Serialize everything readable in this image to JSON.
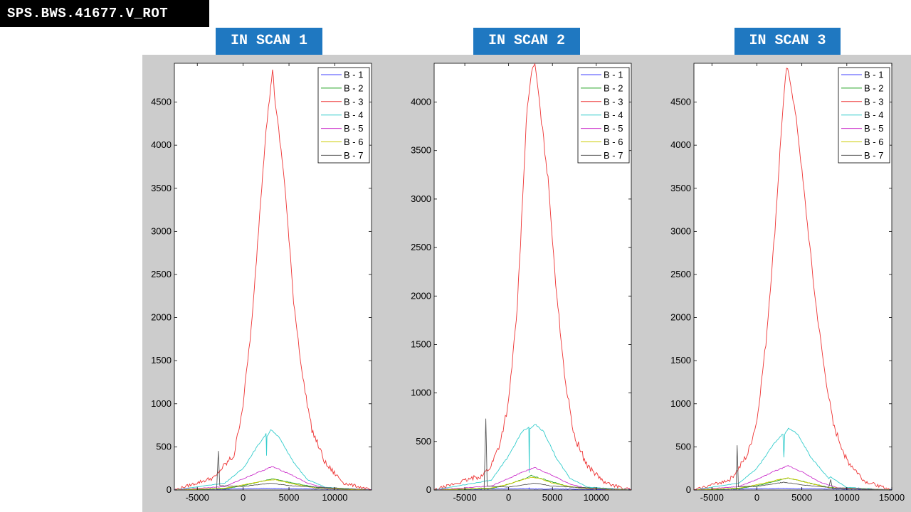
{
  "page_title": "SPS.BWS.41677.V_ROT",
  "scan_labels": [
    "IN SCAN 1",
    "IN SCAN 2",
    "IN SCAN 3"
  ],
  "legend_labels": [
    "B - 1",
    "B - 2",
    "B - 3",
    "B - 4",
    "B - 5",
    "B - 6",
    "B - 7"
  ],
  "series_colors": [
    "#4040ff",
    "#22a022",
    "#ee3333",
    "#33cccc",
    "#cc33cc",
    "#cccc00",
    "#555555"
  ],
  "chart_data": [
    {
      "type": "line",
      "xlim": [
        -7500,
        14000
      ],
      "ylim": [
        0,
        4950
      ],
      "xticks": [
        -5000,
        0,
        5000,
        10000
      ],
      "yticks": [
        0,
        500,
        1000,
        1500,
        2000,
        2500,
        3000,
        3500,
        4000,
        4500
      ],
      "grid": false,
      "legend_position": "top-right",
      "series": [
        {
          "name": "B - 1",
          "values": [
            [
              -7500,
              5
            ],
            [
              -2000,
              10
            ],
            [
              2500,
              20
            ],
            [
              5000,
              15
            ],
            [
              14000,
              5
            ]
          ]
        },
        {
          "name": "B - 2",
          "values": [
            [
              -7500,
              0
            ],
            [
              -2000,
              15
            ],
            [
              0,
              50
            ],
            [
              2000,
              100
            ],
            [
              3200,
              130
            ],
            [
              5000,
              90
            ],
            [
              8000,
              30
            ],
            [
              14000,
              0
            ]
          ]
        },
        {
          "name": "B - 3",
          "values": [
            [
              -7500,
              0
            ],
            [
              -3000,
              150
            ],
            [
              -2500,
              230
            ],
            [
              -1000,
              400
            ],
            [
              0,
              1000
            ],
            [
              1000,
              2000
            ],
            [
              1800,
              3200
            ],
            [
              2500,
              4200
            ],
            [
              3000,
              4650
            ],
            [
              3200,
              4900
            ],
            [
              3500,
              4500
            ],
            [
              4500,
              3600
            ],
            [
              5500,
              2200
            ],
            [
              6500,
              1300
            ],
            [
              7500,
              700
            ],
            [
              9000,
              300
            ],
            [
              11000,
              80
            ],
            [
              14000,
              0
            ]
          ]
        },
        {
          "name": "B - 4",
          "values": [
            [
              -7500,
              0
            ],
            [
              -2000,
              80
            ],
            [
              0,
              250
            ],
            [
              1500,
              500
            ],
            [
              2500,
              650
            ],
            [
              2550,
              400
            ],
            [
              2600,
              620
            ],
            [
              3000,
              700
            ],
            [
              4000,
              600
            ],
            [
              5500,
              320
            ],
            [
              7000,
              120
            ],
            [
              9000,
              30
            ],
            [
              14000,
              0
            ]
          ]
        },
        {
          "name": "B - 5",
          "values": [
            [
              -7500,
              0
            ],
            [
              -2000,
              40
            ],
            [
              0,
              130
            ],
            [
              2000,
              220
            ],
            [
              3200,
              270
            ],
            [
              5000,
              190
            ],
            [
              7000,
              80
            ],
            [
              9000,
              20
            ],
            [
              14000,
              0
            ]
          ]
        },
        {
          "name": "B - 6",
          "values": [
            [
              -7500,
              0
            ],
            [
              -2000,
              20
            ],
            [
              0,
              60
            ],
            [
              2500,
              110
            ],
            [
              3500,
              120
            ],
            [
              5000,
              80
            ],
            [
              8000,
              20
            ],
            [
              14000,
              0
            ]
          ]
        },
        {
          "name": "B - 7",
          "values": [
            [
              -7500,
              0
            ],
            [
              -2900,
              0
            ],
            [
              -2700,
              450
            ],
            [
              -2550,
              50
            ],
            [
              0,
              40
            ],
            [
              3000,
              80
            ],
            [
              5000,
              50
            ],
            [
              14000,
              0
            ]
          ]
        }
      ]
    },
    {
      "type": "line",
      "xlim": [
        -8500,
        14000
      ],
      "ylim": [
        0,
        4400
      ],
      "xticks": [
        -5000,
        0,
        5000,
        10000
      ],
      "yticks": [
        0,
        500,
        1000,
        1500,
        2000,
        2500,
        3000,
        3500,
        4000
      ],
      "grid": false,
      "legend_position": "top-right",
      "series": [
        {
          "name": "B - 1",
          "values": [
            [
              -8500,
              5
            ],
            [
              -2000,
              10
            ],
            [
              2300,
              15
            ],
            [
              2350,
              20
            ],
            [
              2400,
              10
            ],
            [
              5000,
              10
            ],
            [
              14000,
              5
            ]
          ]
        },
        {
          "name": "B - 2",
          "values": [
            [
              -8500,
              0
            ],
            [
              -2000,
              15
            ],
            [
              0,
              60
            ],
            [
              2000,
              120
            ],
            [
              2500,
              150
            ],
            [
              4000,
              110
            ],
            [
              7000,
              30
            ],
            [
              14000,
              0
            ]
          ]
        },
        {
          "name": "B - 3",
          "values": [
            [
              -8500,
              0
            ],
            [
              -3000,
              150
            ],
            [
              -2000,
              250
            ],
            [
              -1000,
              480
            ],
            [
              0,
              900
            ],
            [
              1000,
              1900
            ],
            [
              1600,
              3000
            ],
            [
              2000,
              3800
            ],
            [
              2500,
              4250
            ],
            [
              3000,
              4400
            ],
            [
              3500,
              4000
            ],
            [
              4500,
              3200
            ],
            [
              5500,
              2000
            ],
            [
              6500,
              1100
            ],
            [
              7500,
              550
            ],
            [
              9000,
              250
            ],
            [
              11000,
              70
            ],
            [
              14000,
              0
            ]
          ]
        },
        {
          "name": "B - 4",
          "values": [
            [
              -8500,
              0
            ],
            [
              -2000,
              100
            ],
            [
              0,
              350
            ],
            [
              1500,
              600
            ],
            [
              2300,
              650
            ],
            [
              2350,
              180
            ],
            [
              2400,
              630
            ],
            [
              3000,
              680
            ],
            [
              4000,
              600
            ],
            [
              5500,
              320
            ],
            [
              7000,
              120
            ],
            [
              9000,
              30
            ],
            [
              14000,
              0
            ]
          ]
        },
        {
          "name": "B - 5",
          "values": [
            [
              -8500,
              0
            ],
            [
              -2000,
              40
            ],
            [
              0,
              120
            ],
            [
              2000,
              200
            ],
            [
              3000,
              230
            ],
            [
              5000,
              150
            ],
            [
              7000,
              60
            ],
            [
              9000,
              15
            ],
            [
              14000,
              0
            ]
          ]
        },
        {
          "name": "B - 6",
          "values": [
            [
              -8500,
              0
            ],
            [
              -2000,
              20
            ],
            [
              0,
              60
            ],
            [
              2500,
              130
            ],
            [
              3500,
              120
            ],
            [
              5000,
              70
            ],
            [
              8000,
              20
            ],
            [
              14000,
              0
            ]
          ]
        },
        {
          "name": "B - 7",
          "values": [
            [
              -8500,
              0
            ],
            [
              -2800,
              0
            ],
            [
              -2600,
              740
            ],
            [
              -2450,
              40
            ],
            [
              0,
              30
            ],
            [
              3000,
              70
            ],
            [
              5000,
              40
            ],
            [
              14000,
              0
            ]
          ]
        }
      ]
    },
    {
      "type": "line",
      "xlim": [
        -7000,
        15000
      ],
      "ylim": [
        0,
        4950
      ],
      "xticks": [
        -5000,
        0,
        5000,
        10000,
        15000
      ],
      "yticks": [
        0,
        500,
        1000,
        1500,
        2000,
        2500,
        3000,
        3500,
        4000,
        4500
      ],
      "grid": false,
      "legend_position": "top-right",
      "series": [
        {
          "name": "B - 1",
          "values": [
            [
              -7000,
              5
            ],
            [
              -2000,
              10
            ],
            [
              2500,
              20
            ],
            [
              5000,
              15
            ],
            [
              15000,
              5
            ]
          ]
        },
        {
          "name": "B - 2",
          "values": [
            [
              -7000,
              0
            ],
            [
              -2000,
              15
            ],
            [
              0,
              50
            ],
            [
              2000,
              100
            ],
            [
              3500,
              140
            ],
            [
              5000,
              100
            ],
            [
              8000,
              30
            ],
            [
              15000,
              0
            ]
          ]
        },
        {
          "name": "B - 3",
          "values": [
            [
              -7000,
              0
            ],
            [
              -3000,
              120
            ],
            [
              -2000,
              250
            ],
            [
              -1000,
              420
            ],
            [
              0,
              800
            ],
            [
              1000,
              1700
            ],
            [
              2000,
              3000
            ],
            [
              2800,
              4300
            ],
            [
              3300,
              4900
            ],
            [
              3800,
              4700
            ],
            [
              4500,
              4200
            ],
            [
              5500,
              3200
            ],
            [
              6500,
              2200
            ],
            [
              7500,
              1400
            ],
            [
              8500,
              750
            ],
            [
              10000,
              350
            ],
            [
              12000,
              100
            ],
            [
              15000,
              0
            ]
          ]
        },
        {
          "name": "B - 4",
          "values": [
            [
              -7000,
              0
            ],
            [
              -2000,
              80
            ],
            [
              0,
              250
            ],
            [
              2000,
              550
            ],
            [
              2900,
              650
            ],
            [
              3000,
              380
            ],
            [
              3100,
              640
            ],
            [
              3500,
              720
            ],
            [
              4500,
              650
            ],
            [
              6000,
              380
            ],
            [
              8000,
              130
            ],
            [
              8200,
              150
            ],
            [
              10000,
              30
            ],
            [
              15000,
              0
            ]
          ]
        },
        {
          "name": "B - 5",
          "values": [
            [
              -7000,
              0
            ],
            [
              -2000,
              40
            ],
            [
              0,
              120
            ],
            [
              2000,
              220
            ],
            [
              3500,
              280
            ],
            [
              5000,
              210
            ],
            [
              7000,
              90
            ],
            [
              9000,
              25
            ],
            [
              15000,
              0
            ]
          ]
        },
        {
          "name": "B - 6",
          "values": [
            [
              -7000,
              0
            ],
            [
              -2000,
              20
            ],
            [
              0,
              60
            ],
            [
              2500,
              120
            ],
            [
              3500,
              140
            ],
            [
              5000,
              100
            ],
            [
              8000,
              25
            ],
            [
              15000,
              0
            ]
          ]
        },
        {
          "name": "B - 7",
          "values": [
            [
              -7000,
              0
            ],
            [
              -2300,
              0
            ],
            [
              -2200,
              520
            ],
            [
              -2050,
              40
            ],
            [
              0,
              40
            ],
            [
              3000,
              90
            ],
            [
              5000,
              60
            ],
            [
              8000,
              30
            ],
            [
              8200,
              120
            ],
            [
              8400,
              20
            ],
            [
              15000,
              0
            ]
          ]
        }
      ]
    }
  ]
}
